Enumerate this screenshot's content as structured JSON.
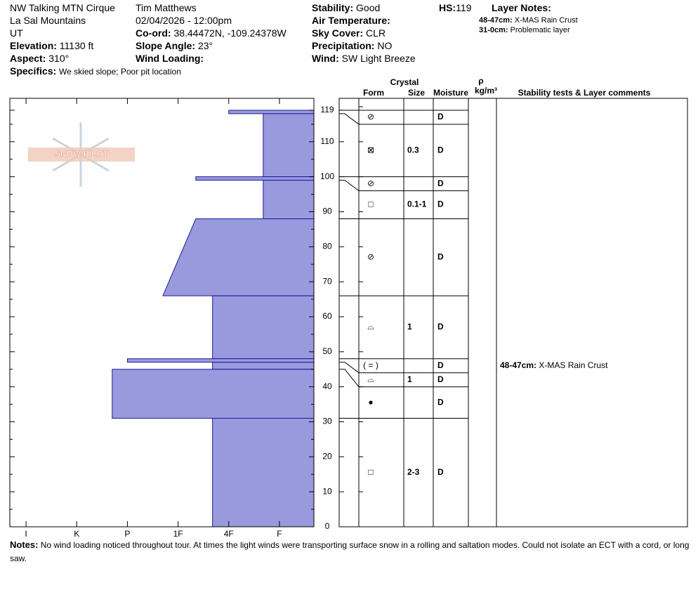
{
  "chart_data": {
    "type": "snow-profile",
    "header": {
      "left": [
        {
          "text": "NW Talking MTN Cirque"
        },
        {
          "text": "La Sal Mountains"
        },
        {
          "text": "UT"
        },
        {
          "label": "Elevation:",
          "text": "11130 ft"
        },
        {
          "label": "Aspect:",
          "text": "310°"
        }
      ],
      "middle": [
        {
          "text": "Tim Matthews"
        },
        {
          "text": "02/04/2026 - 12:00pm"
        },
        {
          "label": "Co-ord:",
          "text": "38.44472N, -109.24378W"
        },
        {
          "label": "Slope Angle:",
          "text": "23°"
        },
        {
          "label": "Wind Loading:"
        }
      ],
      "right": [
        {
          "label": "Stability:",
          "text": "Good"
        },
        {
          "label": "Air Temperature:"
        },
        {
          "label": "Sky Cover:",
          "text": "CLR"
        },
        {
          "label": "Precipitation:",
          "text": "NO"
        },
        {
          "label": "Wind:",
          "text": " SW Light Breeze"
        }
      ],
      "specifics": {
        "label": "Specifics:",
        "text": "We skied slope; Poor pit location"
      },
      "hs": {
        "label": "HS:",
        "value": 119
      },
      "layer_notes": {
        "title": "Layer Notes:",
        "items": [
          {
            "label": "48-47cm:",
            "text": "X-MAS Rain Crust"
          },
          {
            "label": "31-0cm:",
            "text": "Problematic layer"
          }
        ]
      }
    },
    "logo": "SNOW PILOT",
    "columns": {
      "crystal": "Crystal",
      "form": "Form",
      "size": "Size",
      "moisture": "Moisture",
      "density": "ρ",
      "density_unit": "kg/m³",
      "comments": "Stability tests & Layer comments"
    },
    "ylim": [
      0,
      122.4
    ],
    "yticks": [
      0,
      10,
      20,
      30,
      40,
      50,
      60,
      70,
      80,
      90,
      100,
      110,
      119
    ],
    "xlim": [
      6.32,
      0.32
    ],
    "xticks": [
      {
        "value": 6,
        "label": "I"
      },
      {
        "value": 5,
        "label": "K"
      },
      {
        "value": 4,
        "label": "P"
      },
      {
        "value": 3,
        "label": "1F"
      },
      {
        "value": 2,
        "label": "4F"
      },
      {
        "value": 1,
        "label": "F"
      }
    ],
    "fill": "#9999dd",
    "stroke": "#1a1a9a",
    "layers": [
      {
        "top": 119,
        "bottom": 118,
        "hardness_top": 2,
        "hardness_bottom": 2,
        "form": "⊘",
        "moisture": "D"
      },
      {
        "top": 118,
        "bottom": 100,
        "hardness_top": 1.32,
        "hardness_bottom": 1.32,
        "form": "⊠",
        "size": "0.3",
        "moisture": "D"
      },
      {
        "top": 100,
        "bottom": 99,
        "hardness_top": 2.65,
        "hardness_bottom": 2.65,
        "form": "⊘",
        "moisture": "D"
      },
      {
        "top": 99,
        "bottom": 88,
        "hardness_top": 1.32,
        "hardness_bottom": 1.32,
        "form": "□",
        "size": "0.1-1",
        "moisture": "D"
      },
      {
        "top": 88,
        "bottom": 66,
        "hardness_top": 2.65,
        "hardness_bottom": 3.3,
        "form": "⊘",
        "moisture": "D"
      },
      {
        "top": 66,
        "bottom": 48,
        "hardness_top": 2.32,
        "hardness_bottom": 2.32,
        "form": "⌓",
        "size": "1",
        "moisture": "D"
      },
      {
        "top": 48,
        "bottom": 47,
        "hardness_top": 4,
        "hardness_bottom": 4,
        "form": "( = )",
        "moisture": "D",
        "comment": {
          "label": "48-47cm:",
          "text": "X-MAS Rain Crust"
        }
      },
      {
        "top": 47,
        "bottom": 45,
        "hardness_top": 2.32,
        "hardness_bottom": 2.32,
        "form": "⌓",
        "size": "1",
        "moisture": "D"
      },
      {
        "top": 45,
        "bottom": 31,
        "hardness_top": 4.3,
        "hardness_bottom": 4.3,
        "form": "●",
        "moisture": "D"
      },
      {
        "top": 31,
        "bottom": 0,
        "hardness_top": 2.32,
        "hardness_bottom": 2.32,
        "form": "□",
        "size": "2-3",
        "moisture": "D"
      }
    ],
    "notes": {
      "label": "Notes:",
      "text": "No wind loading noticed throughout tour. At times the light winds were transporting surface snow in a rolling and saltation modes. Could not isolate an ECT with a cord, or long saw."
    }
  }
}
